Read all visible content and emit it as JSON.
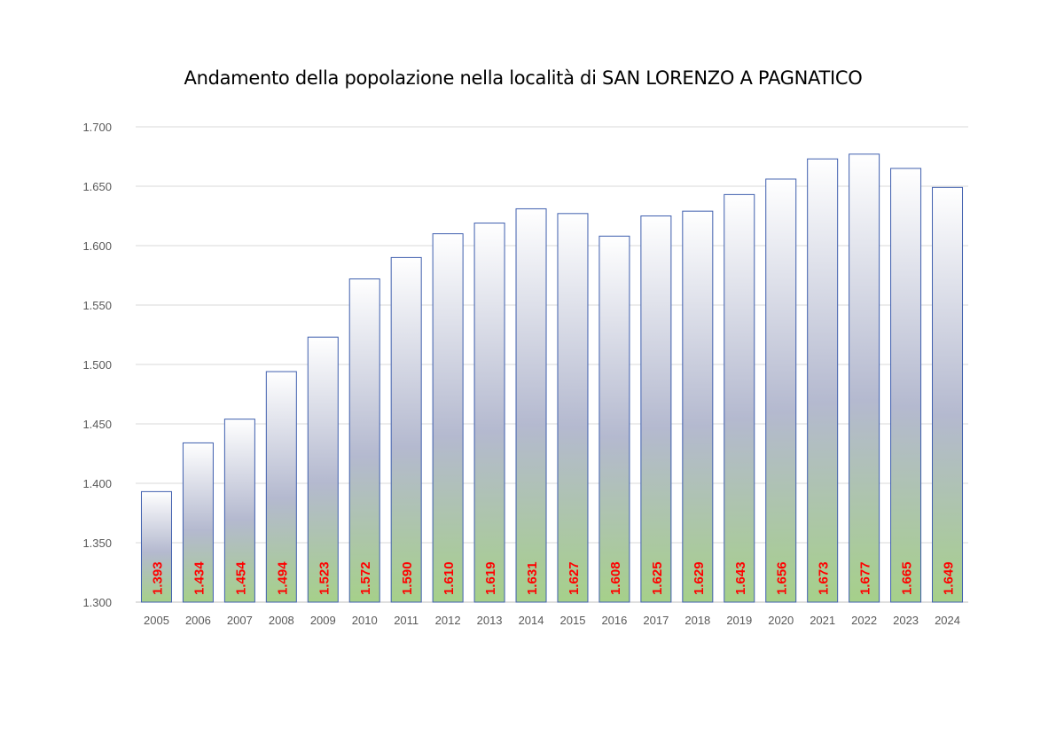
{
  "chart_data": {
    "type": "bar",
    "title": "Andamento della popolazione nella località di SAN LORENZO A PAGNATICO",
    "xlabel": "",
    "ylabel": "",
    "ylim": [
      1300,
      1700
    ],
    "yticks": [
      1300,
      1350,
      1400,
      1450,
      1500,
      1550,
      1600,
      1650,
      1700
    ],
    "ytick_labels": [
      "1.300",
      "1.350",
      "1.400",
      "1.450",
      "1.500",
      "1.550",
      "1.600",
      "1.650",
      "1.700"
    ],
    "categories": [
      "2005",
      "2006",
      "2007",
      "2008",
      "2009",
      "2010",
      "2011",
      "2012",
      "2013",
      "2014",
      "2015",
      "2016",
      "2017",
      "2018",
      "2019",
      "2020",
      "2021",
      "2022",
      "2023",
      "2024"
    ],
    "values": [
      1393,
      1434,
      1454,
      1494,
      1523,
      1572,
      1590,
      1610,
      1619,
      1631,
      1627,
      1608,
      1625,
      1629,
      1643,
      1656,
      1673,
      1677,
      1665,
      1649
    ],
    "data_labels": [
      "1.393",
      "1.434",
      "1.454",
      "1.494",
      "1.523",
      "1.572",
      "1.590",
      "1.610",
      "1.619",
      "1.631",
      "1.627",
      "1.608",
      "1.625",
      "1.629",
      "1.643",
      "1.656",
      "1.673",
      "1.677",
      "1.665",
      "1.649"
    ],
    "grid": true,
    "colors": {
      "bar_top": "#ffffff",
      "bar_mid": "#b4b9cf",
      "bar_bottom": "#a6d08a",
      "bar_border": "#3f5fae",
      "label": "#ff0000",
      "grid": "#d9d9d9"
    }
  }
}
